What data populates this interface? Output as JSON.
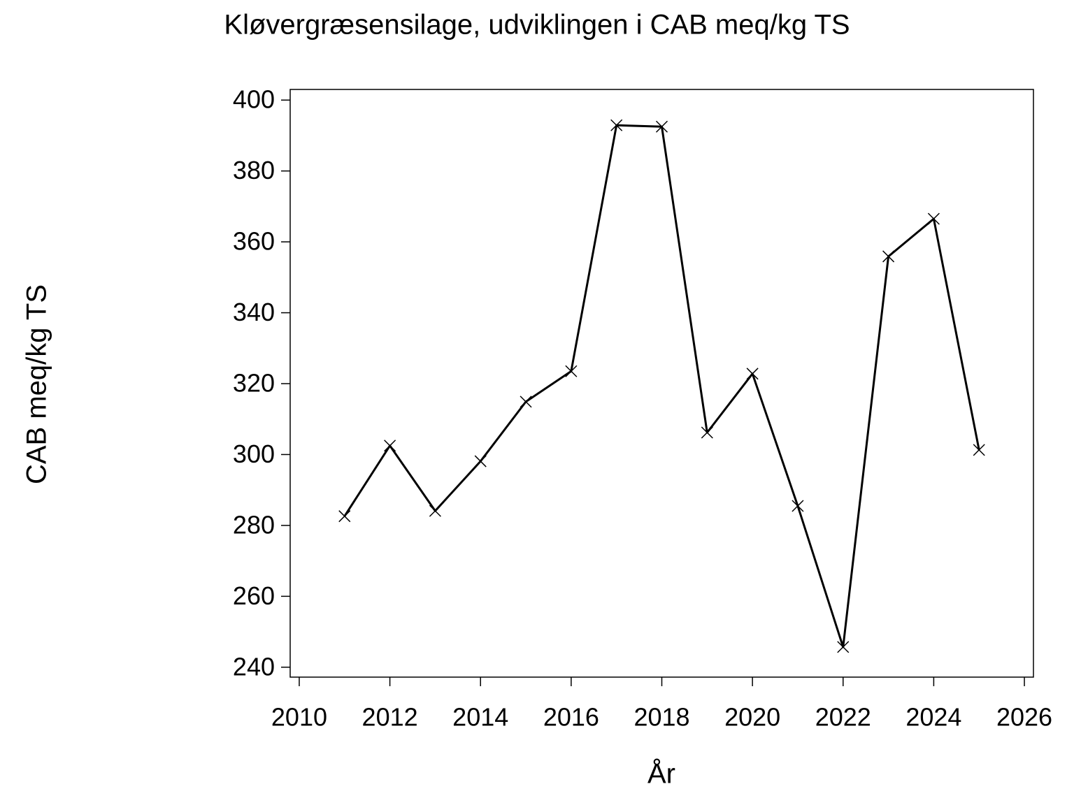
{
  "chart_data": {
    "type": "line",
    "title": "Kløvergræsensilage,  udviklingen  i  CAB  meq/kg  TS",
    "x_label": "År",
    "y_label": "CAB  meq/kg  TS",
    "x": [
      2011,
      2012,
      2013,
      2014,
      2015,
      2016,
      2017,
      2018,
      2019,
      2020,
      2021,
      2022,
      2023,
      2024,
      2025
    ],
    "series": [
      {
        "color": "#000000",
        "values": [
          282.6,
          302.5,
          284.1,
          298.1,
          314.9,
          323.5,
          392.9,
          392.5,
          306.2,
          322.8,
          285.5,
          245.7,
          355.9,
          366.5,
          301.3
        ]
      }
    ],
    "xlim": [
      2009.8,
      2026.2
    ],
    "xticks": [
      2010,
      2012,
      2014,
      2016,
      2018,
      2020,
      2022,
      2024,
      2026
    ],
    "ylim": [
      237.2,
      403
    ],
    "yticks": [
      240,
      260,
      280,
      300,
      320,
      340,
      360,
      380,
      400
    ],
    "marker": "x"
  }
}
